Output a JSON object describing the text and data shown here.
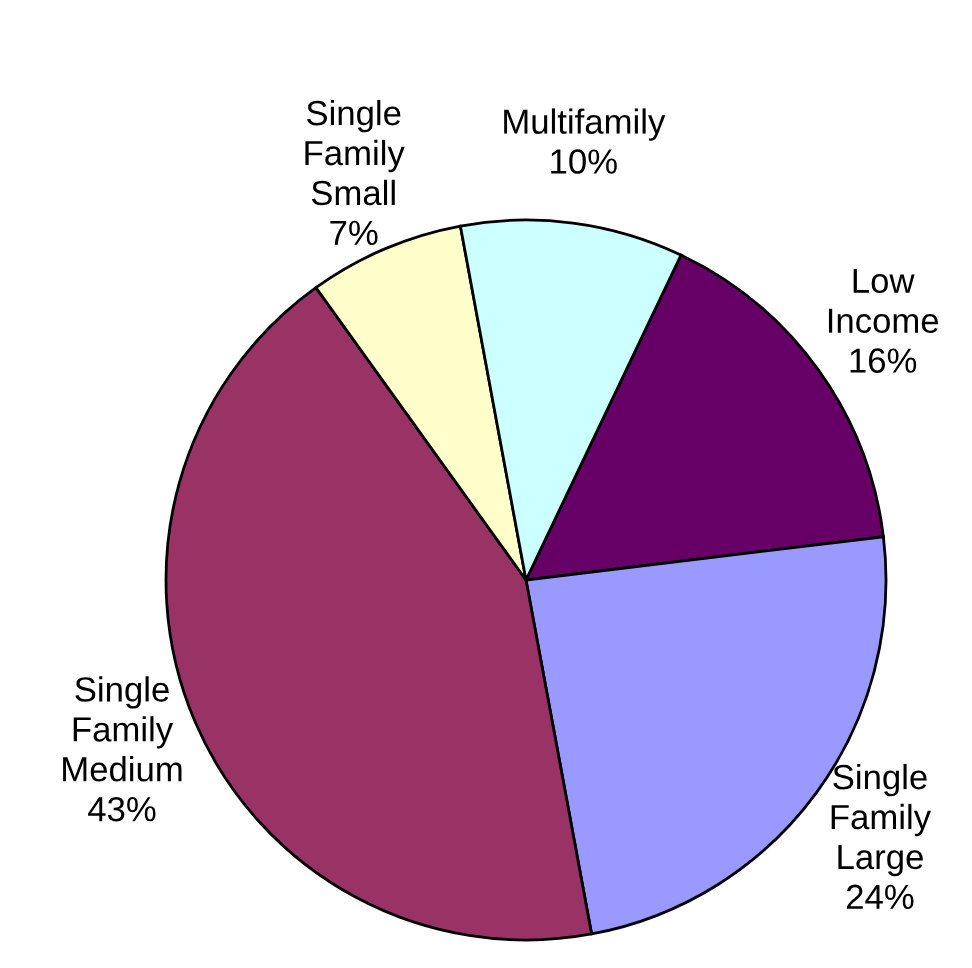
{
  "chart_data": {
    "type": "pie",
    "categories": [
      "Low\nIncome",
      "Single\nFamily\nLarge",
      "Single\nFamily\nMedium",
      "Single\nFamily\nSmall",
      "Multifamily"
    ],
    "values": [
      16,
      24,
      43,
      7,
      10
    ],
    "colors": [
      "#660066",
      "#9999ff",
      "#993366",
      "#ffffcc",
      "#ccffff"
    ],
    "value_labels": [
      "16%",
      "24%",
      "43%",
      "7%",
      "10%"
    ]
  }
}
